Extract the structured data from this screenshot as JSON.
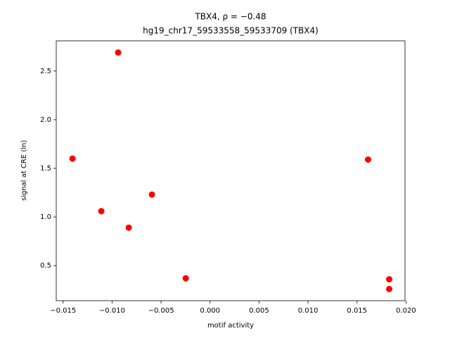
{
  "chart_data": {
    "type": "scatter",
    "title": "TBX4, ρ = −0.48",
    "subtitle": "hg19_chr17_59533558_59533709 (TBX4)",
    "x_label": "motif activity",
    "y_label": "signal at CRE (ln)",
    "color": "#ff0000",
    "x": [
      -0.01404,
      -0.00938,
      -0.0111,
      -0.0083,
      -0.00593,
      -0.00248,
      0.01613,
      0.01829,
      0.01829
    ],
    "values": [
      1.6,
      2.69,
      1.06,
      0.89,
      1.23,
      0.37,
      1.59,
      0.36,
      0.26
    ],
    "xlim": [
      -0.0157,
      0.0199
    ],
    "ylim": [
      0.14,
      2.81
    ],
    "xticks": [
      {
        "value": -0.015,
        "label": "−0.015"
      },
      {
        "value": -0.01,
        "label": "−0.010"
      },
      {
        "value": -0.005,
        "label": "−0.005"
      },
      {
        "value": 0,
        "label": "0.000"
      },
      0.005,
      {
        "value": 0.01,
        "label": "0.010"
      },
      0.015,
      {
        "value": 0.02,
        "label": "0.020"
      }
    ],
    "yticks": [
      0.5,
      {
        "value": 1,
        "label": "1.0"
      },
      1.5,
      {
        "value": 2,
        "label": "2.0"
      },
      2.5
    ]
  }
}
